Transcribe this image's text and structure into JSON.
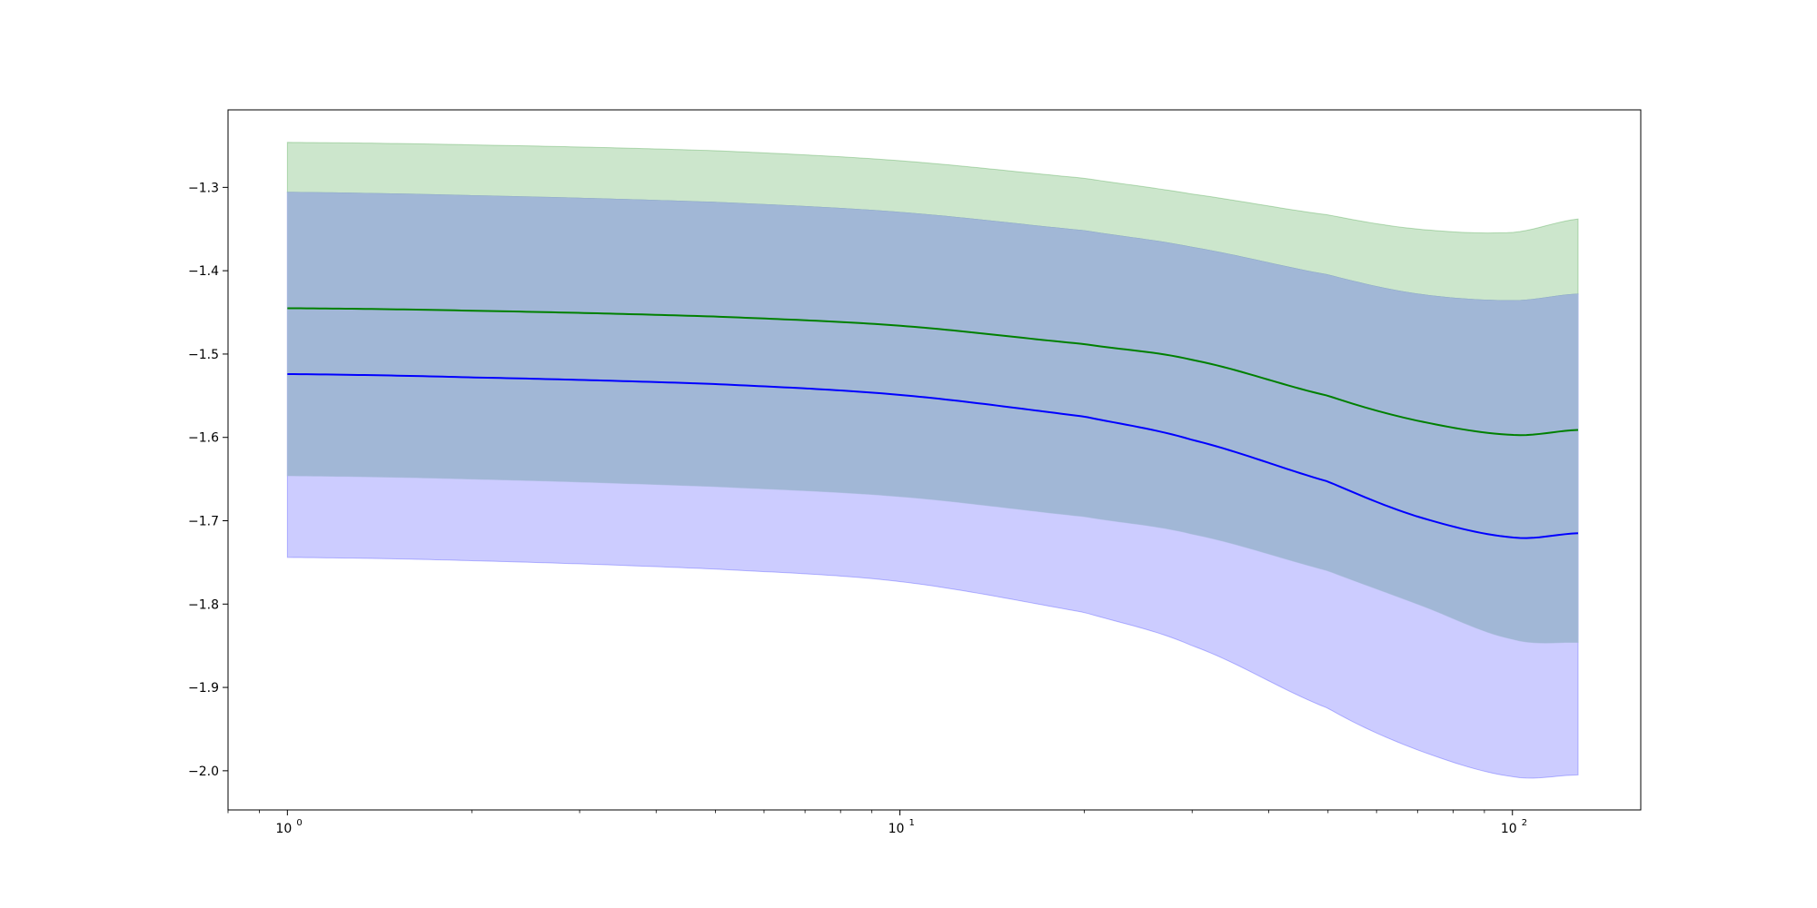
{
  "chart_data": {
    "type": "area",
    "title": "",
    "xlabel": "",
    "ylabel": "",
    "xscale": "log",
    "xlim": [
      0.8,
      162
    ],
    "ylim": [
      -2.047,
      -1.207
    ],
    "grid": false,
    "legend": "none",
    "x_ticks": [
      {
        "value": 1,
        "base": "10",
        "exp": "0"
      },
      {
        "value": 10,
        "base": "10",
        "exp": "1"
      },
      {
        "value": 100,
        "base": "10",
        "exp": "2"
      }
    ],
    "y_ticks": [
      {
        "value": -1.3,
        "label": "−1.3"
      },
      {
        "value": -1.4,
        "label": "−1.4"
      },
      {
        "value": -1.5,
        "label": "−1.5"
      },
      {
        "value": -1.6,
        "label": "−1.6"
      },
      {
        "value": -1.7,
        "label": "−1.7"
      },
      {
        "value": -1.8,
        "label": "−1.8"
      },
      {
        "value": -1.9,
        "label": "−1.9"
      },
      {
        "value": -2.0,
        "label": "−2.0"
      }
    ],
    "x": [
      1,
      2,
      5,
      10,
      20,
      30,
      50,
      70,
      100,
      128
    ],
    "series": [
      {
        "color": "#008000",
        "band_color": "#008000",
        "band_opacity": 0.2,
        "mean": [
          -1.445,
          -1.448,
          -1.455,
          -1.466,
          -1.488,
          -1.507,
          -1.55,
          -1.58,
          -1.597,
          -1.591
        ],
        "upper": [
          -1.246,
          -1.249,
          -1.256,
          -1.268,
          -1.289,
          -1.308,
          -1.333,
          -1.35,
          -1.354,
          -1.338
        ],
        "lower": [
          -1.306,
          -1.31,
          -1.318,
          -1.33,
          -1.352,
          -1.372,
          -1.405,
          -1.428,
          -1.436,
          -1.428
        ]
      },
      {
        "color": "#0000ff",
        "band_color": "#0000ff",
        "band_opacity": 0.2,
        "mean": [
          -1.524,
          -1.528,
          -1.536,
          -1.549,
          -1.575,
          -1.603,
          -1.653,
          -1.695,
          -1.72,
          -1.715
        ],
        "upper": [
          -1.306,
          -1.31,
          -1.318,
          -1.33,
          -1.352,
          -1.372,
          -1.405,
          -1.428,
          -1.436,
          -1.428
        ],
        "lower": [
          -1.744,
          -1.748,
          -1.758,
          -1.773,
          -1.81,
          -1.85,
          -1.925,
          -1.975,
          -2.007,
          -2.005
        ]
      },
      {
        "color": "#008000",
        "band_color": "#0000ff",
        "band_opacity": 0.0,
        "mean": [],
        "upper": [],
        "lower": []
      }
    ],
    "overlap_band": {
      "color": "#a1b7d6",
      "upper": [
        -1.306,
        -1.31,
        -1.318,
        -1.33,
        -1.352,
        -1.372,
        -1.405,
        -1.428,
        -1.436,
        -1.428
      ],
      "lower": [
        -1.646,
        -1.65,
        -1.659,
        -1.671,
        -1.695,
        -1.716,
        -1.76,
        -1.8,
        -1.842,
        -1.846
      ]
    }
  }
}
